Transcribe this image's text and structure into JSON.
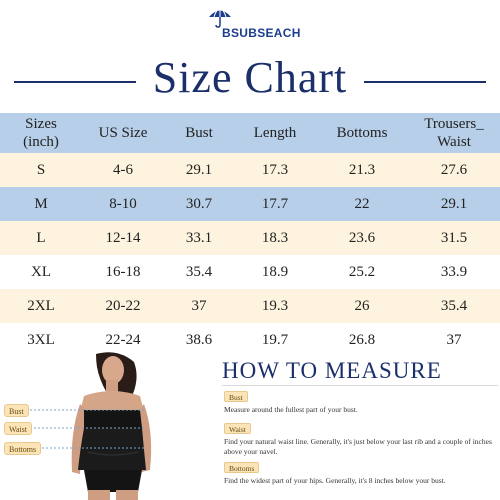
{
  "brand": {
    "name": "BSUBSEACH",
    "logo_icon": "umbrella-icon"
  },
  "title": "Size Chart",
  "table": {
    "headers": [
      [
        "Sizes",
        "(inch)"
      ],
      [
        "US Size"
      ],
      [
        "Bust"
      ],
      [
        "Length"
      ],
      [
        "Bottoms"
      ],
      [
        "Trousers_",
        "Waist"
      ]
    ],
    "rows": [
      [
        "S",
        "4-6",
        "29.1",
        "17.3",
        "21.3",
        "27.6"
      ],
      [
        "M",
        "8-10",
        "30.7",
        "17.7",
        "22",
        "29.1"
      ],
      [
        "L",
        "12-14",
        "33.1",
        "18.3",
        "23.6",
        "31.5"
      ],
      [
        "XL",
        "16-18",
        "35.4",
        "18.9",
        "25.2",
        "33.9"
      ],
      [
        "2XL",
        "20-22",
        "37",
        "19.3",
        "26",
        "35.4"
      ],
      [
        "3XL",
        "22-24",
        "38.6",
        "19.7",
        "26.8",
        "37"
      ]
    ],
    "colors": {
      "header": "#b7cfe8",
      "cream": "#fdf3de",
      "highlight": "#b7cfe8"
    }
  },
  "figure_labels": {
    "bust": "Bust",
    "waist": "Waist",
    "bottoms": "Bottoms"
  },
  "how_to_measure": {
    "title": "HOW TO MEASURE",
    "items": [
      {
        "tag": "Bust",
        "text": "Measure around the fullest part of your bust."
      },
      {
        "tag": "Waist",
        "text": "Find your natural waist line. Generally, it's just below your last rib and a couple of inches above your navel."
      },
      {
        "tag": "Bottoms",
        "text": "Find the widest part of your hips. Generally, it's 8 inches below your bust."
      }
    ]
  }
}
